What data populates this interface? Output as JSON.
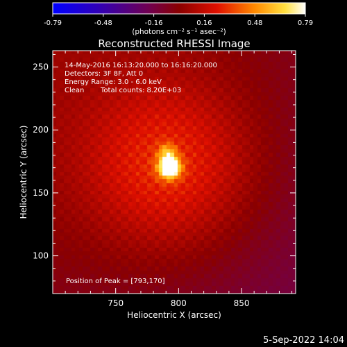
{
  "colorbar": {
    "ticks": [
      "-0.79",
      "-0.48",
      "-0.16",
      "0.16",
      "0.48",
      "0.79"
    ],
    "range": [
      -0.79,
      0.79
    ],
    "unit_label": "(photons cm⁻² s⁻¹ asec⁻²)"
  },
  "chart_data": {
    "type": "heatmap",
    "title": "Reconstructed RHESSI Image",
    "xlabel": "Heliocentric X (arcsec)",
    "ylabel": "Heliocentric Y (arcsec)",
    "xlim": [
      700,
      893
    ],
    "ylim": [
      70,
      263
    ],
    "x_ticks": [
      "750",
      "800",
      "850"
    ],
    "y_ticks": [
      "100",
      "150",
      "200",
      "250"
    ],
    "x_tick_values": [
      750,
      800,
      850
    ],
    "y_tick_values": [
      100,
      150,
      200,
      250
    ],
    "peak": {
      "x": 793,
      "y": 170,
      "value": 0.79
    },
    "colormap": "thermal",
    "annotations": {
      "time_range": "14-May-2016 16:13:20.000 to 16:16:20.000",
      "detectors": "Detectors: 3F 8F, Att 0",
      "energy": "Energy Range: 3.0 - 6.0 keV",
      "method": "Clean",
      "counts": "Total counts: 8.20E+03",
      "peak_position": "Position of Peak = [793,170]"
    }
  },
  "footer": {
    "date": "5-Sep-2022 14:04"
  }
}
